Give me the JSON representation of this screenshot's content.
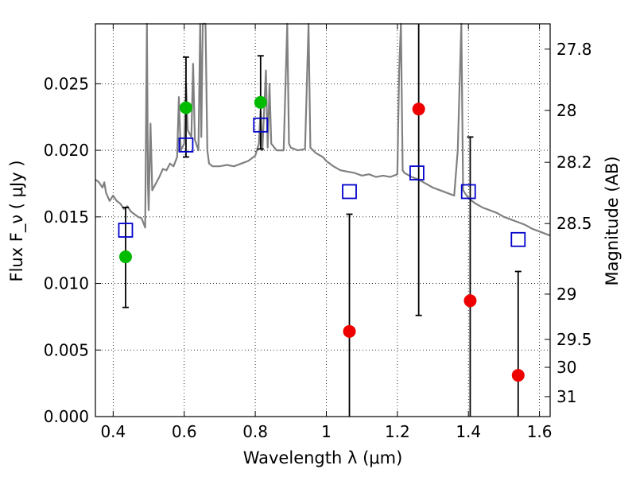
{
  "chart_data": {
    "type": "scatter",
    "xlabel": "Wavelength  λ (μm)",
    "ylabel": "Flux  F_ν  ( μJy )",
    "y2label": "Magnitude (AB)",
    "xlim": [
      0.35,
      1.63
    ],
    "ylim": [
      0.0,
      0.0295
    ],
    "grid": true,
    "x_ticks": [
      0.4,
      0.6,
      0.8,
      1.0,
      1.2,
      1.4,
      1.6
    ],
    "x_tick_labels": [
      "0.4",
      "0.6",
      "0.8",
      "1",
      "1.2",
      "1.4",
      "1.6"
    ],
    "y_ticks": [
      0.0,
      0.005,
      0.01,
      0.015,
      0.02,
      0.025
    ],
    "y_tick_labels": [
      "0.000",
      "0.005",
      "0.010",
      "0.015",
      "0.020",
      "0.025"
    ],
    "y2_ticks": [
      {
        "label": "27.8",
        "flux": 0.0276
      },
      {
        "label": "28",
        "flux": 0.023
      },
      {
        "label": "28.2",
        "flux": 0.0191
      },
      {
        "label": "28.5",
        "flux": 0.0145
      },
      {
        "label": "29",
        "flux": 0.0092
      },
      {
        "label": "29.5",
        "flux": 0.0058
      },
      {
        "label": "30",
        "flux": 0.0037
      },
      {
        "label": "31",
        "flux": 0.0015
      }
    ],
    "colors": {
      "spectrum": "#808080",
      "model": "#0000cc",
      "detection": "#00bb00",
      "nondetection": "#ee0000",
      "errorbar": "#000000"
    },
    "model_points": [
      {
        "x": 0.435,
        "y": 0.014
      },
      {
        "x": 0.605,
        "y": 0.0204
      },
      {
        "x": 0.815,
        "y": 0.0219
      },
      {
        "x": 1.065,
        "y": 0.0169
      },
      {
        "x": 1.255,
        "y": 0.0183
      },
      {
        "x": 1.4,
        "y": 0.0169
      },
      {
        "x": 1.54,
        "y": 0.0133
      }
    ],
    "observed_points": [
      {
        "x": 0.435,
        "y": 0.012,
        "err_low": 0.0082,
        "err_high": 0.0157,
        "detected": true
      },
      {
        "x": 0.605,
        "y": 0.0232,
        "err_low": 0.0195,
        "err_high": 0.027,
        "detected": true
      },
      {
        "x": 0.815,
        "y": 0.0236,
        "err_low": 0.0201,
        "err_high": 0.0271,
        "detected": true
      },
      {
        "x": 1.065,
        "y": 0.0064,
        "err_low": 0.0,
        "err_high": 0.0152,
        "detected": false
      },
      {
        "x": 1.26,
        "y": 0.0231,
        "err_low": 0.0076,
        "err_high": 0.0295,
        "detected": false
      },
      {
        "x": 1.405,
        "y": 0.0087,
        "err_low": 0.0,
        "err_high": 0.021,
        "detected": false
      },
      {
        "x": 1.54,
        "y": 0.0031,
        "err_low": 0.0,
        "err_high": 0.0109,
        "detected": false
      }
    ],
    "spectrum": [
      [
        0.35,
        0.0178
      ],
      [
        0.36,
        0.0176
      ],
      [
        0.37,
        0.0172
      ],
      [
        0.375,
        0.0176
      ],
      [
        0.38,
        0.0168
      ],
      [
        0.39,
        0.0162
      ],
      [
        0.4,
        0.0166
      ],
      [
        0.41,
        0.0162
      ],
      [
        0.42,
        0.016
      ],
      [
        0.43,
        0.0156
      ],
      [
        0.44,
        0.0158
      ],
      [
        0.45,
        0.0154
      ],
      [
        0.46,
        0.0152
      ],
      [
        0.47,
        0.015
      ],
      [
        0.48,
        0.0149
      ],
      [
        0.49,
        0.0142
      ],
      [
        0.495,
        0.0295
      ],
      [
        0.498,
        0.0175
      ],
      [
        0.5,
        0.0155
      ],
      [
        0.505,
        0.022
      ],
      [
        0.51,
        0.017
      ],
      [
        0.52,
        0.0175
      ],
      [
        0.53,
        0.018
      ],
      [
        0.54,
        0.0186
      ],
      [
        0.55,
        0.0185
      ],
      [
        0.56,
        0.019
      ],
      [
        0.57,
        0.0188
      ],
      [
        0.58,
        0.0195
      ],
      [
        0.585,
        0.024
      ],
      [
        0.59,
        0.02
      ],
      [
        0.6,
        0.0205
      ],
      [
        0.605,
        0.025
      ],
      [
        0.61,
        0.0215
      ],
      [
        0.62,
        0.021
      ],
      [
        0.625,
        0.0265
      ],
      [
        0.63,
        0.0208
      ],
      [
        0.64,
        0.02
      ],
      [
        0.645,
        0.0295
      ],
      [
        0.648,
        0.021
      ],
      [
        0.652,
        0.0295
      ],
      [
        0.656,
        0.0295
      ],
      [
        0.66,
        0.0295
      ],
      [
        0.665,
        0.02
      ],
      [
        0.67,
        0.019
      ],
      [
        0.68,
        0.0188
      ],
      [
        0.7,
        0.0188
      ],
      [
        0.72,
        0.0189
      ],
      [
        0.74,
        0.0188
      ],
      [
        0.76,
        0.019
      ],
      [
        0.78,
        0.0192
      ],
      [
        0.8,
        0.0196
      ],
      [
        0.81,
        0.0205
      ],
      [
        0.815,
        0.023
      ],
      [
        0.82,
        0.02
      ],
      [
        0.83,
        0.026
      ],
      [
        0.835,
        0.0202
      ],
      [
        0.84,
        0.025
      ],
      [
        0.845,
        0.0205
      ],
      [
        0.86,
        0.02
      ],
      [
        0.88,
        0.02
      ],
      [
        0.89,
        0.0295
      ],
      [
        0.895,
        0.0205
      ],
      [
        0.9,
        0.0202
      ],
      [
        0.92,
        0.02
      ],
      [
        0.94,
        0.0201
      ],
      [
        0.95,
        0.0295
      ],
      [
        0.955,
        0.0202
      ],
      [
        0.97,
        0.0198
      ],
      [
        0.99,
        0.0195
      ],
      [
        1.0,
        0.0192
      ],
      [
        1.02,
        0.0188
      ],
      [
        1.04,
        0.0185
      ],
      [
        1.06,
        0.0184
      ],
      [
        1.08,
        0.0183
      ],
      [
        1.1,
        0.0181
      ],
      [
        1.12,
        0.0182
      ],
      [
        1.14,
        0.018
      ],
      [
        1.16,
        0.0181
      ],
      [
        1.18,
        0.018
      ],
      [
        1.2,
        0.0182
      ],
      [
        1.205,
        0.026
      ],
      [
        1.21,
        0.0295
      ],
      [
        1.215,
        0.0185
      ],
      [
        1.22,
        0.0183
      ],
      [
        1.24,
        0.018
      ],
      [
        1.26,
        0.0178
      ],
      [
        1.28,
        0.0175
      ],
      [
        1.3,
        0.0172
      ],
      [
        1.32,
        0.017
      ],
      [
        1.34,
        0.0168
      ],
      [
        1.36,
        0.0166
      ],
      [
        1.37,
        0.02
      ],
      [
        1.38,
        0.0295
      ],
      [
        1.385,
        0.017
      ],
      [
        1.4,
        0.0164
      ],
      [
        1.42,
        0.016
      ],
      [
        1.44,
        0.0157
      ],
      [
        1.46,
        0.0155
      ],
      [
        1.48,
        0.0153
      ],
      [
        1.5,
        0.015
      ],
      [
        1.52,
        0.0148
      ],
      [
        1.54,
        0.0146
      ],
      [
        1.56,
        0.0144
      ],
      [
        1.58,
        0.0141
      ],
      [
        1.6,
        0.0139
      ],
      [
        1.63,
        0.0136
      ]
    ]
  }
}
